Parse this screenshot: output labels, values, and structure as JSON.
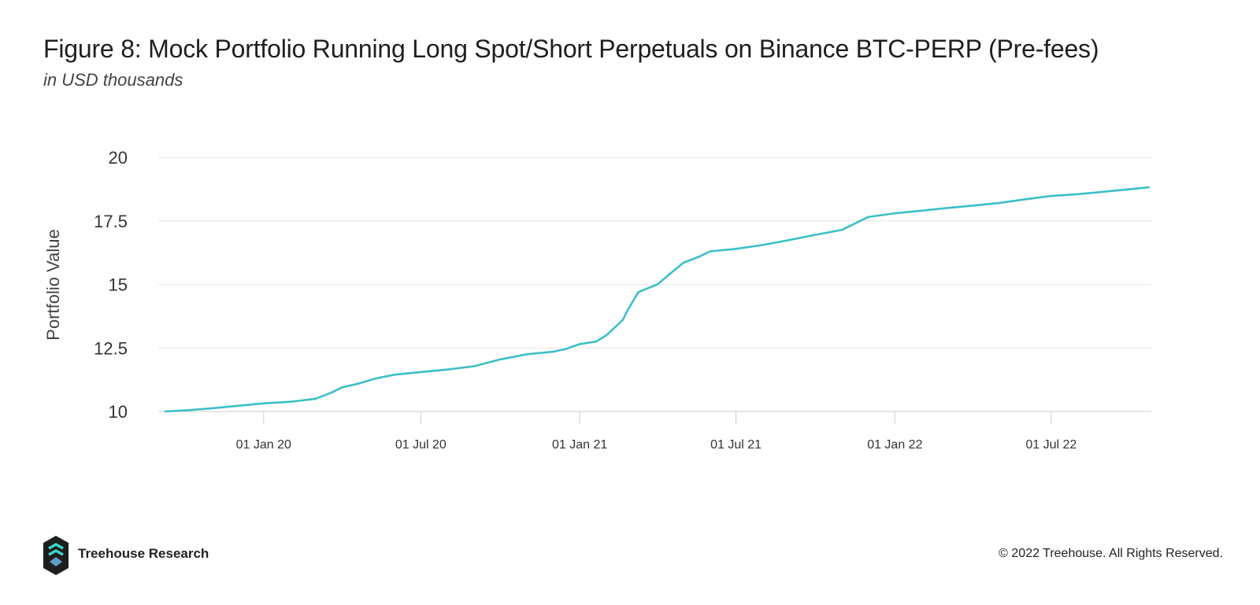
{
  "header": {
    "title": "Figure 8: Mock Portfolio Running Long Spot/Short Perpetuals on Binance BTC-PERP (Pre-fees)",
    "subtitle": "in USD thousands"
  },
  "footer": {
    "brand": "Treehouse Research",
    "copyright": "© 2022 Treehouse. All Rights Reserved.",
    "logo_icon": "treehouse-logo-icon"
  },
  "colors": {
    "line": "#3cbfc8",
    "grid": "#e6e6e6",
    "axis": "#cccccc",
    "text": "#333333"
  },
  "chart_data": {
    "type": "line",
    "ylabel": "Portfolio Value",
    "xlabel": "",
    "ylim": [
      10,
      20
    ],
    "xlim": [
      "2019-09-01",
      "2022-10-25"
    ],
    "grid": true,
    "yticks": [
      {
        "value": 10,
        "label": "10"
      },
      {
        "value": 12.5,
        "label": "12.5"
      },
      {
        "value": 15,
        "label": "15"
      },
      {
        "value": 17.5,
        "label": "17.5"
      },
      {
        "value": 20,
        "label": "20"
      }
    ],
    "xticks": [
      {
        "date": "2020-01-01",
        "label": "01 Jan 20"
      },
      {
        "date": "2020-07-01",
        "label": "01 Jul 20"
      },
      {
        "date": "2021-01-01",
        "label": "01 Jan 21"
      },
      {
        "date": "2021-07-01",
        "label": "01 Jul 21"
      },
      {
        "date": "2022-01-01",
        "label": "01 Jan 22"
      },
      {
        "date": "2022-07-01",
        "label": "01 Jul 22"
      }
    ],
    "series": [
      {
        "x": [
          "2019-09-09",
          "2019-10-05",
          "2019-11-01",
          "2019-12-01",
          "2020-01-01",
          "2020-02-01",
          "2020-03-01",
          "2020-03-20",
          "2020-04-01",
          "2020-04-20",
          "2020-05-10",
          "2020-06-01",
          "2020-07-01",
          "2020-08-01",
          "2020-09-01",
          "2020-10-01",
          "2020-11-01",
          "2020-12-01",
          "2020-12-15",
          "2021-01-01",
          "2021-01-20",
          "2021-02-01",
          "2021-02-20",
          "2021-02-25",
          "2021-03-10",
          "2021-04-01",
          "2021-04-15",
          "2021-05-01",
          "2021-05-20",
          "2021-06-01",
          "2021-07-01",
          "2021-08-01",
          "2021-09-01",
          "2021-10-01",
          "2021-11-01",
          "2021-12-01",
          "2022-01-01",
          "2022-02-01",
          "2022-03-01",
          "2022-04-01",
          "2022-05-01",
          "2022-06-01",
          "2022-07-01",
          "2022-08-01",
          "2022-09-01",
          "2022-10-01",
          "2022-10-22"
        ],
        "values": [
          10.0,
          10.05,
          10.12,
          10.22,
          10.32,
          10.38,
          10.5,
          10.75,
          10.95,
          11.1,
          11.3,
          11.45,
          11.55,
          11.65,
          11.78,
          12.05,
          12.25,
          12.35,
          12.45,
          12.65,
          12.75,
          13.0,
          13.6,
          13.95,
          14.7,
          15.0,
          15.4,
          15.85,
          16.1,
          16.3,
          16.4,
          16.55,
          16.75,
          16.95,
          17.15,
          17.65,
          17.8,
          17.9,
          18.0,
          18.1,
          18.2,
          18.35,
          18.48,
          18.55,
          18.65,
          18.75,
          18.82
        ]
      }
    ]
  }
}
